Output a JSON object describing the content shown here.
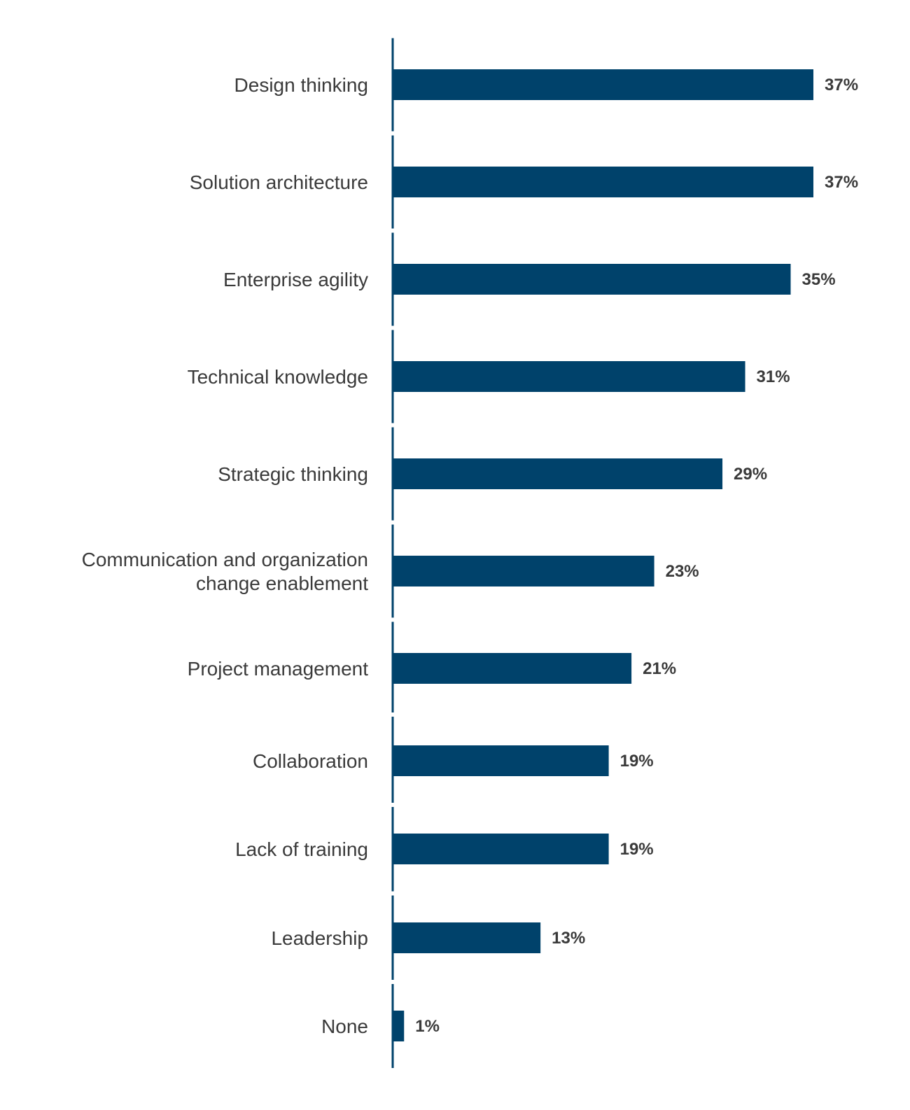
{
  "chart_data": {
    "type": "bar",
    "orientation": "horizontal",
    "categories": [
      [
        "Design thinking"
      ],
      [
        "Solution architecture"
      ],
      [
        "Enterprise agility"
      ],
      [
        "Technical knowledge"
      ],
      [
        "Strategic thinking"
      ],
      [
        "Communication and organization",
        "change enablement"
      ],
      [
        "Project management"
      ],
      [
        "Collaboration"
      ],
      [
        "Lack of training"
      ],
      [
        "Leadership"
      ],
      [
        "None"
      ]
    ],
    "values": [
      37,
      37,
      35,
      31,
      29,
      23,
      21,
      19,
      19,
      13,
      1
    ],
    "value_labels": [
      "37%",
      "37%",
      "35%",
      "31%",
      "29%",
      "23%",
      "21%",
      "19%",
      "19%",
      "13%",
      "1%"
    ],
    "unit": "%",
    "title": "",
    "xlabel": "",
    "ylabel": "",
    "xlim": [
      0,
      37
    ],
    "grid": false,
    "legend": "none",
    "bar_color": "#00426b",
    "axis_color": "#00426b",
    "text_color": "#3a3a3a"
  }
}
